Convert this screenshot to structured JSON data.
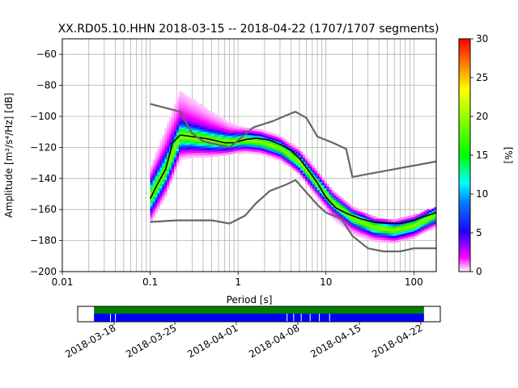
{
  "chart_data": [
    {
      "type": "heatmap",
      "title": "XX.RD05.10.HHN   2018-03-15 -- 2018-04-22  (1707/1707 segments)",
      "xlabel": "Period [s]",
      "ylabel": "Amplitude [m²/s⁴/Hz] [dB]",
      "x_scale": "log",
      "xlim": [
        0.01,
        180
      ],
      "ylim": [
        -200,
        -50
      ],
      "x_ticks": [
        0.01,
        0.1,
        1,
        10,
        100
      ],
      "x_tick_labels": [
        "0.01",
        "0.1",
        "1",
        "10",
        "100"
      ],
      "y_ticks": [
        -200,
        -180,
        -160,
        -140,
        -120,
        -100,
        -80,
        -60
      ],
      "y_tick_labels": [
        "−200",
        "−180",
        "−160",
        "−140",
        "−120",
        "−100",
        "−80",
        "−60"
      ],
      "grid": true,
      "colorbar": {
        "label": "[%]",
        "range": [
          0,
          30
        ],
        "ticks": [
          0,
          5,
          10,
          15,
          20,
          25,
          30
        ],
        "tick_labels": [
          "0",
          "5",
          "10",
          "15",
          "20",
          "25",
          "30"
        ],
        "colormap": [
          "#ffffff",
          "#ff00ff",
          "#2000ff",
          "#0080ff",
          "#00ffff",
          "#00ff00",
          "#ffff00",
          "#ff0000"
        ]
      },
      "series": [
        {
          "style": "mode",
          "color": "#000000",
          "x": [
            0.1,
            0.12,
            0.15,
            0.18,
            0.22,
            0.3,
            0.4,
            0.5,
            0.7,
            0.9,
            1.2,
            1.6,
            2.2,
            3,
            4,
            5,
            6,
            8,
            10,
            13,
            18,
            25,
            35,
            50,
            70,
            100,
            140,
            180
          ],
          "y": [
            -153,
            -144,
            -134,
            -117,
            -112,
            -113,
            -114,
            -115,
            -117,
            -117,
            -115,
            -114,
            -115,
            -118,
            -122,
            -127,
            -133,
            -143,
            -152,
            -159,
            -163,
            -166,
            -168,
            -169,
            -169,
            -167,
            -164,
            -162
          ]
        },
        {
          "style": "noise-model-high",
          "color": "#666666",
          "x": [
            0.1,
            0.22,
            0.3,
            0.4,
            0.8,
            1.5,
            2.5,
            4,
            4.5,
            6,
            8,
            12,
            17,
            20,
            180
          ],
          "y": [
            -92,
            -97,
            -111,
            -116,
            -120,
            -107,
            -103,
            -98,
            -97,
            -101,
            -113,
            -117,
            -121,
            -139,
            -129
          ]
        },
        {
          "style": "noise-model-low",
          "color": "#666666",
          "x": [
            0.1,
            0.2,
            0.5,
            0.8,
            1.2,
            1.6,
            2.3,
            3.5,
            4.5,
            6,
            8,
            10,
            15,
            20,
            30,
            45,
            70,
            100,
            180
          ],
          "y": [
            -168,
            -167,
            -167,
            -169,
            -164,
            -156,
            -148,
            -144,
            -141,
            -149,
            -157,
            -162,
            -166,
            -177,
            -185,
            -187,
            -187,
            -185,
            -185
          ]
        }
      ],
      "density": {
        "peak": {
          "x": [
            0.1,
            0.15,
            0.22,
            0.3,
            0.5,
            0.8,
            1.2,
            1.8,
            3,
            5,
            8,
            12,
            20,
            35,
            60,
            100,
            180
          ],
          "y": [
            -153,
            -135,
            -113,
            -114,
            -116,
            -117,
            -116,
            -117,
            -121,
            -130,
            -144,
            -156,
            -166,
            -172,
            -174,
            -171,
            -164
          ]
        },
        "upper_spread": [
          18,
          26,
          28,
          24,
          18,
          12,
          8,
          7,
          7,
          8,
          8,
          7,
          6,
          5,
          5,
          5,
          4
        ],
        "lower_spread": [
          16,
          16,
          14,
          12,
          10,
          8,
          7,
          7,
          7,
          8,
          9,
          10,
          10,
          9,
          8,
          8,
          7
        ]
      }
    },
    {
      "type": "timeline",
      "x_tick_labels": [
        "2018-03-18",
        "2018-03-25",
        "2018-04-01",
        "2018-04-08",
        "2018-04-15",
        "2018-04-22"
      ],
      "bars": [
        {
          "color": "#008000"
        },
        {
          "color": "#0000ff"
        }
      ],
      "gaps_fraction": [
        0.05,
        0.065,
        0.585,
        0.605,
        0.628,
        0.655,
        0.683,
        0.714
      ]
    }
  ]
}
